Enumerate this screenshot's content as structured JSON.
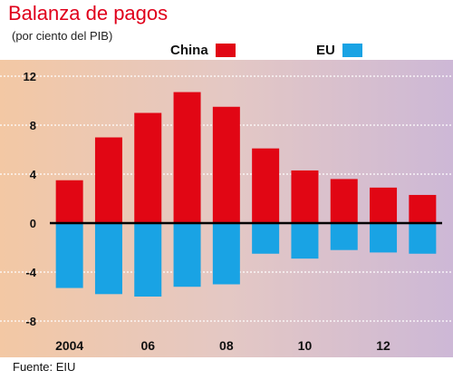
{
  "header": {
    "title": "Balanza de pagos",
    "subtitle": "(por ciento del PIB)"
  },
  "legend": [
    {
      "label": "China",
      "color": "#e10614"
    },
    {
      "label": "EU",
      "color": "#19a3e4"
    }
  ],
  "source": "Fuente: EIU",
  "chart_data": {
    "type": "bar",
    "title": "Balanza de pagos",
    "subtitle": "(por ciento del PIB)",
    "x": [
      2004,
      2005,
      2006,
      2007,
      2008,
      2009,
      2010,
      2011,
      2012,
      2013
    ],
    "x_tick_labels": [
      {
        "x": 2004,
        "label": "2004"
      },
      {
        "x": 2006,
        "label": "06"
      },
      {
        "x": 2008,
        "label": "08"
      },
      {
        "x": 2010,
        "label": "10"
      },
      {
        "x": 2012,
        "label": "12"
      }
    ],
    "series": [
      {
        "name": "China",
        "color": "#e10614",
        "values": [
          3.5,
          7.0,
          9.0,
          10.7,
          9.5,
          6.1,
          4.3,
          3.6,
          2.9,
          2.3
        ]
      },
      {
        "name": "EU",
        "color": "#19a3e4",
        "values": [
          -5.3,
          -5.8,
          -6.0,
          -5.2,
          -5.0,
          -2.5,
          -2.9,
          -2.2,
          -2.4,
          -2.5
        ]
      }
    ],
    "ylim": [
      -8.5,
      12.5
    ],
    "yticks": [
      -8,
      -4,
      0,
      4,
      8,
      12
    ],
    "grid": true,
    "legend_position": "top",
    "source": "Fuente: EIU"
  }
}
